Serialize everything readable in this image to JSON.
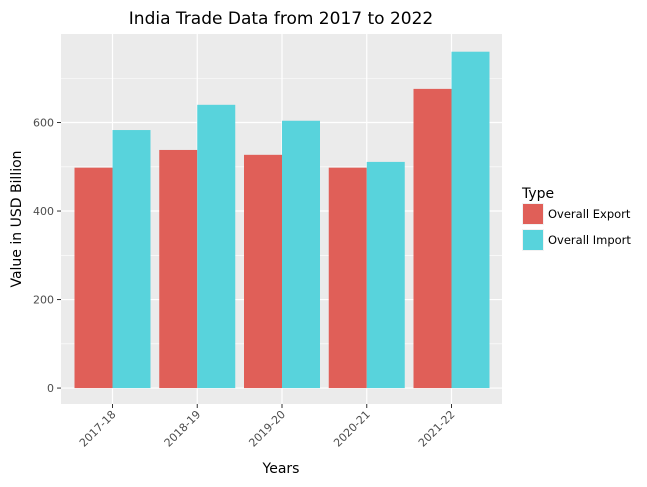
{
  "chart_data": {
    "type": "bar",
    "title": "India Trade Data from 2017 to 2022",
    "xlabel": "Years",
    "ylabel": "Value in USD Billion",
    "categories": [
      "2017-18",
      "2018-19",
      "2019-20",
      "2020-21",
      "2021-22"
    ],
    "series": [
      {
        "name": "Overall Export",
        "values": [
          498,
          538,
          527,
          498,
          676
        ],
        "color": "#e05f58"
      },
      {
        "name": "Overall Import",
        "values": [
          583,
          640,
          604,
          511,
          760
        ],
        "color": "#58d3dc"
      }
    ],
    "ylim": [
      -36,
      800
    ],
    "yticks": [
      0,
      200,
      400,
      600
    ],
    "grid": true,
    "legend_title": "Type",
    "legend_position": "right"
  }
}
